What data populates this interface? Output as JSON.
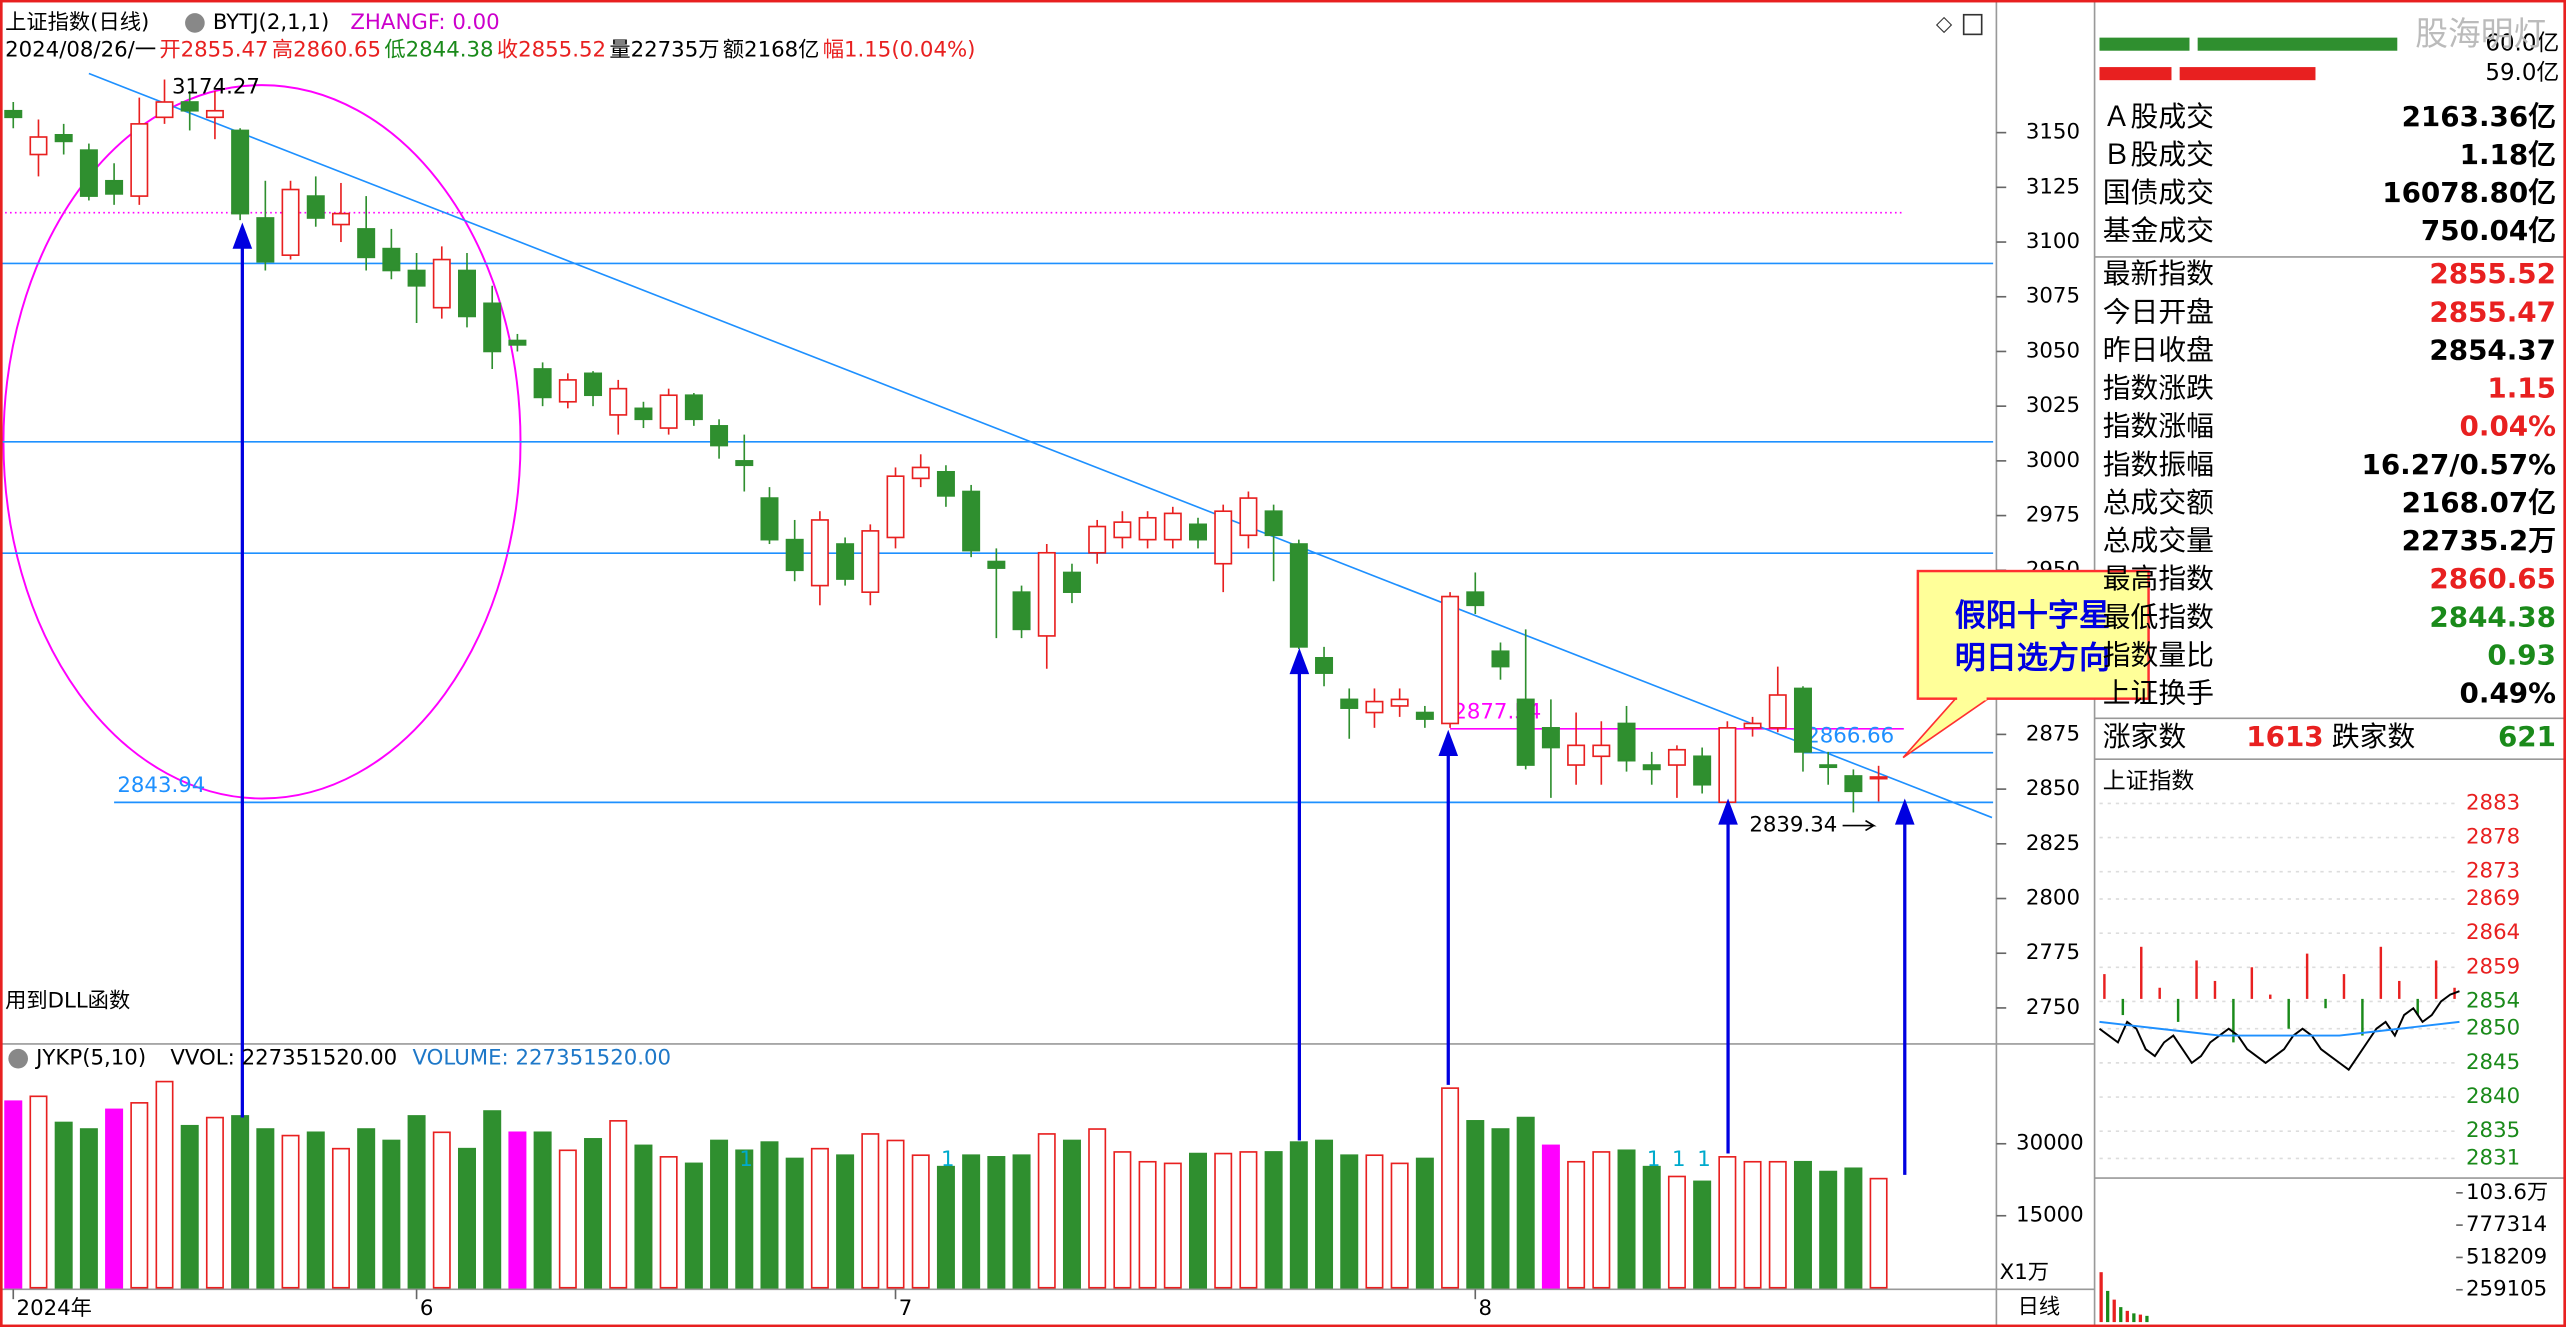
{
  "ui": {
    "title": "上证指数(日线)",
    "indicator": "BYTJ(2,1,1)",
    "zhangf": "ZHANGF: 0.00",
    "info": [
      {
        "text": "2024/08/26/一",
        "color": "#000000"
      },
      {
        "text": "开2855.47",
        "color": "#e82020"
      },
      {
        "text": "高2860.65",
        "color": "#e82020"
      },
      {
        "text": "低2844.38",
        "color": "#1a8a1a"
      },
      {
        "text": "收2855.52",
        "color": "#e82020"
      },
      {
        "text": "量22735万",
        "color": "#000000"
      },
      {
        "text": "额2168亿",
        "color": "#000000"
      },
      {
        "text": "幅1.15(0.04%)",
        "color": "#e82020"
      }
    ],
    "dll_note": "用到DLL函数",
    "vol_header": [
      "JYKP(5,10)",
      "VVOL: 227351520.00",
      "VOLUME: 227351520.00"
    ],
    "vol_unit": "X1万",
    "period_tab": "日线",
    "watermark": "股海明灯",
    "callout": [
      "假阳十字星",
      "明日选方向"
    ],
    "side_top": [
      "60.0亿",
      "59.0亿"
    ],
    "side_rows": [
      {
        "label": "Ａ股成交",
        "value": "2163.36亿",
        "color": "#000000"
      },
      {
        "label": "Ｂ股成交",
        "value": "1.18亿",
        "color": "#000000"
      },
      {
        "label": "国债成交",
        "value": "16078.80亿",
        "color": "#000000"
      },
      {
        "label": "基金成交",
        "value": "750.04亿",
        "color": "#000000"
      },
      {
        "label": "最新指数",
        "value": "2855.52",
        "color": "#e82020"
      },
      {
        "label": "今日开盘",
        "value": "2855.47",
        "color": "#e82020"
      },
      {
        "label": "昨日收盘",
        "value": "2854.37",
        "color": "#000000"
      },
      {
        "label": "指数涨跌",
        "value": "1.15",
        "color": "#e82020"
      },
      {
        "label": "指数涨幅",
        "value": "0.04%",
        "color": "#e82020"
      },
      {
        "label": "指数振幅",
        "value": "16.27/0.57%",
        "color": "#000000"
      },
      {
        "label": "总成交额",
        "value": "2168.07亿",
        "color": "#000000"
      },
      {
        "label": "总成交量",
        "value": "22735.2万",
        "color": "#000000"
      },
      {
        "label": "最高指数",
        "value": "2860.65",
        "color": "#e82020"
      },
      {
        "label": "最低指数",
        "value": "2844.38",
        "color": "#1a8a1a"
      },
      {
        "label": "指数量比",
        "value": "0.93",
        "color": "#1a8a1a"
      },
      {
        "label": "上证换手",
        "value": "0.49%",
        "color": "#000000"
      }
    ],
    "breadth": {
      "up_label": "涨家数",
      "up": "1613",
      "down_label": "跌家数",
      "down": "621"
    }
  },
  "chart_data": [
    {
      "type": "candlestick",
      "title": "上证指数(日线)",
      "open": [
        3160,
        3140,
        3149,
        3142,
        3128,
        3121,
        3157,
        3164,
        3157,
        3151,
        3111,
        3094,
        3121,
        3108,
        3106,
        3097,
        3087,
        3070,
        3087,
        3072,
        3055,
        3042,
        3027,
        3040,
        3021,
        3024,
        3015,
        3030,
        3016,
        3000,
        2983,
        2964,
        2943,
        2962,
        2940,
        2965,
        2992,
        2995,
        2986,
        2954,
        2940,
        2920,
        2949,
        2958,
        2965,
        2964,
        2964,
        2971,
        2953,
        2966,
        2977,
        2962,
        2910,
        2891,
        2885,
        2888,
        2885,
        2880,
        2940,
        2913,
        2891,
        2878,
        2861,
        2865,
        2880,
        2861,
        2861,
        2865,
        2844,
        2878,
        2878,
        2896,
        2861,
        2856,
        2855.47
      ],
      "high": [
        3164,
        3156,
        3154,
        3145,
        3136,
        3166,
        3174.27,
        3169,
        3169,
        3152,
        3128,
        3128,
        3130,
        3127,
        3121,
        3106,
        3095,
        3098,
        3095,
        3080,
        3058,
        3045,
        3040,
        3041,
        3037,
        3027,
        3033,
        3031,
        3019,
        3012,
        2988,
        2973,
        2977,
        2965,
        2971,
        2997,
        3003,
        2998,
        2989,
        2960,
        2943,
        2962,
        2953,
        2973,
        2977,
        2977,
        2979,
        2974,
        2980,
        2986,
        2980,
        2964,
        2915,
        2896,
        2896,
        2896,
        2888,
        2940,
        2949,
        2917,
        2923,
        2891,
        2885,
        2881,
        2888,
        2867,
        2870,
        2869,
        2881,
        2883,
        2906,
        2897,
        2867,
        2859,
        2860.65
      ],
      "low": [
        3152,
        3130,
        3140,
        3119,
        3117,
        3117,
        3154,
        3151,
        3147,
        3110,
        3087,
        3092,
        3107,
        3100,
        3087,
        3083,
        3063,
        3065,
        3061,
        3042,
        3050,
        3025,
        3024,
        3025,
        3012,
        3015,
        3012,
        3016,
        3001,
        2986,
        2962,
        2945,
        2934,
        2943,
        2934,
        2960,
        2988,
        2979,
        2956,
        2919,
        2919,
        2905,
        2935,
        2953,
        2960,
        2960,
        2960,
        2960,
        2940,
        2960,
        2945,
        2914,
        2897,
        2873,
        2878,
        2883,
        2878,
        2878,
        2930,
        2900,
        2859,
        2846,
        2852,
        2852,
        2858,
        2852,
        2846,
        2848,
        2843,
        2874,
        2876,
        2858,
        2852,
        2839.34,
        2844.38
      ],
      "close": [
        3157,
        3148,
        3146,
        3121,
        3122,
        3154,
        3164,
        3160,
        3160,
        3113,
        3091,
        3124,
        3111,
        3113,
        3093,
        3087,
        3080,
        3092,
        3066,
        3050,
        3053,
        3029,
        3037,
        3030,
        3033,
        3019,
        3030,
        3019,
        3007,
        2998,
        2964,
        2950,
        2973,
        2946,
        2968,
        2993,
        2997,
        2984,
        2959,
        2951,
        2923,
        2958,
        2940,
        2970,
        2972,
        2974,
        2976,
        2964,
        2977,
        2983,
        2966,
        2915,
        2903,
        2887,
        2890,
        2891,
        2882,
        2938,
        2934,
        2906,
        2861,
        2869,
        2870,
        2870,
        2863,
        2859,
        2868,
        2852,
        2878,
        2880,
        2893,
        2867,
        2860,
        2849,
        2855.52
      ],
      "ylim": [
        2734.3,
        3180.7
      ],
      "yticks": [
        3150,
        3125,
        3100,
        3075,
        3050,
        3025,
        3000,
        2975,
        2950,
        2925,
        2900,
        2875,
        2850,
        2825,
        2800,
        2775,
        2750
      ],
      "xticks": [
        {
          "value": 0,
          "label": "2024年"
        },
        {
          "value": 16,
          "label": "6"
        },
        {
          "value": 35,
          "label": "7"
        },
        {
          "value": 58,
          "label": "8"
        }
      ],
      "up_color": "#e82020",
      "down_color": "#2f8f2f",
      "hlines": [
        {
          "value": 3113.4,
          "color": "#ff00ff",
          "dotted": true,
          "to": 75
        },
        {
          "value": 3090.2,
          "color": "#1e90ff"
        },
        {
          "value": 3008.7,
          "color": "#1e90ff"
        },
        {
          "value": 2957.8,
          "color": "#1e90ff"
        },
        {
          "value": 2877.54,
          "color": "#ff00ff",
          "from": 57,
          "to": 75,
          "labeled": true
        },
        {
          "value": 2866.66,
          "color": "#1e90ff",
          "from": 71,
          "labeled": true
        },
        {
          "value": 2843.94,
          "color": "#1e90ff",
          "from": 4,
          "labeled": true
        }
      ],
      "trendline": {
        "x": [
          3,
          78.5
        ],
        "y": [
          3177,
          2837
        ],
        "color": "#1e90ff"
      },
      "volume": {
        "values": [
          38864,
          39886,
          34432,
          33068,
          37159,
          38523,
          42955,
          33750,
          35455,
          35795,
          33068,
          31705,
          32386,
          28977,
          33068,
          30682,
          35795,
          32386,
          28977,
          36818,
          32386,
          32386,
          28636,
          31023,
          34773,
          29659,
          27273,
          25909,
          30682,
          28636,
          30341,
          26932,
          28977,
          27614,
          32045,
          30682,
          27614,
          25227,
          27614,
          27273,
          27614,
          32045,
          30682,
          33068,
          28295,
          26250,
          25909,
          27955,
          27955,
          28295,
          28295,
          30341,
          30682,
          27614,
          27614,
          25909,
          26932,
          41591,
          34773,
          33068,
          35455,
          29659,
          26250,
          28295,
          28636,
          25227,
          23182,
          22159,
          27273,
          26250,
          26250,
          26250,
          24205,
          24886,
          22735
        ],
        "ylim": [
          0,
          43300
        ],
        "yticks": [
          30000,
          15000
        ],
        "highlight_bars": [
          0,
          4,
          20,
          61
        ],
        "highlight_color": "#ff00ff",
        "signal_label": "1",
        "signal_bars": [
          29,
          37,
          65,
          66,
          67
        ]
      }
    },
    {
      "type": "line",
      "title": "上证指数",
      "base": 2854.37,
      "series": [
        {
          "name": "price",
          "color": "#000000",
          "values": [
            2850,
            2849,
            2848,
            2851,
            2850,
            2847,
            2846,
            2848,
            2849,
            2847,
            2845,
            2846,
            2848,
            2849,
            2850,
            2849,
            2847,
            2846,
            2845,
            2846,
            2847,
            2849,
            2850,
            2849,
            2847,
            2846,
            2845,
            2844,
            2846,
            2848,
            2850,
            2851,
            2849,
            2852,
            2853,
            2851,
            2852,
            2854,
            2855,
            2855.5
          ]
        },
        {
          "name": "average",
          "color": "#1e90ff",
          "values": [
            2851,
            2850.5,
            2850,
            2849.5,
            2849,
            2849,
            2849,
            2849,
            2849,
            2849.5,
            2850,
            2850.5,
            2851
          ]
        }
      ],
      "bars": [
        2858,
        2852,
        2862,
        2856,
        2851,
        2860,
        2857,
        2848,
        2859,
        2855,
        2850,
        2861,
        2853,
        2858,
        2849,
        2862,
        2857,
        2852,
        2860,
        2856
      ],
      "ylim": [
        2831,
        2883
      ],
      "yticks": [
        2883,
        2878,
        2873,
        2869,
        2864,
        2859,
        2854,
        2850,
        2845,
        2840,
        2835,
        2831
      ],
      "up_color": "#e82020",
      "down_color": "#1a8a1a"
    },
    {
      "type": "bar",
      "values": [
        400000,
        250000,
        180000,
        120000,
        90000,
        70000,
        60000,
        50000
      ],
      "color": "#e82020",
      "ylim": [
        0,
        1036000
      ],
      "yticks": [
        {
          "value": 1036000,
          "label": "103.6万"
        },
        777314,
        518209,
        259105
      ]
    }
  ]
}
